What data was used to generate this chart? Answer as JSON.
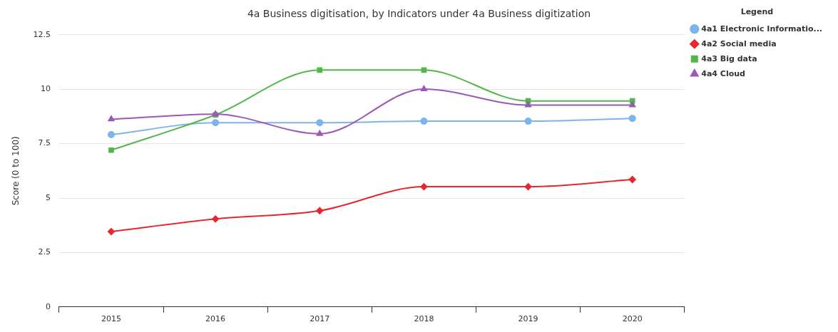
{
  "chart_data": {
    "type": "line",
    "title": "4a Business digitisation, by Indicators under 4a Business digitization",
    "ylabel": "Score (0 to 100)",
    "legend_title": "Legend",
    "categories": [
      "2015",
      "2016",
      "2017",
      "2018",
      "2019",
      "2020"
    ],
    "series": [
      {
        "name": "4a1 Electronic Informatio...",
        "color": "#7cb5ec",
        "marker": "circle",
        "values": [
          7.91,
          8.46,
          8.46,
          8.53,
          8.53,
          8.66
        ]
      },
      {
        "name": "4a2 Social media",
        "color": "#e8262f",
        "marker": "diamond",
        "values": [
          3.46,
          4.04,
          4.42,
          5.52,
          5.52,
          5.85
        ]
      },
      {
        "name": "4a3 Big data",
        "color": "#50b848",
        "marker": "square",
        "values": [
          7.2,
          8.82,
          10.88,
          10.88,
          9.46,
          9.46
        ]
      },
      {
        "name": "4a4 Cloud",
        "color": "#9b59b6",
        "marker": "triangle",
        "values": [
          8.62,
          8.85,
          7.95,
          10.01,
          9.27,
          9.27
        ]
      }
    ],
    "ylim": [
      0,
      12.5
    ],
    "yticks": [
      0,
      2.5,
      5,
      7.5,
      10,
      12.5
    ],
    "grid": "y",
    "legend": "top right"
  }
}
